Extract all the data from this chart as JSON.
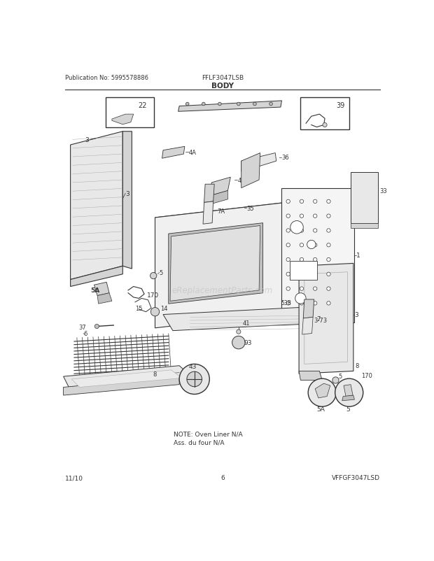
{
  "pub_no": "Publication No: 5995578886",
  "model": "FFLF3047LSB",
  "section": "BODY",
  "diagram_code": "VFFGF3047LSD",
  "date": "11/10",
  "page": "6",
  "note_line1": "NOTE: Oven Liner N/A",
  "note_line2": "Ass. du four N/A",
  "watermark": "eReplacementParts.com",
  "bg_color": "#ffffff",
  "lc": "#333333",
  "gray1": "#e8e8e8",
  "gray2": "#d4d4d4",
  "gray3": "#c0c0c0"
}
